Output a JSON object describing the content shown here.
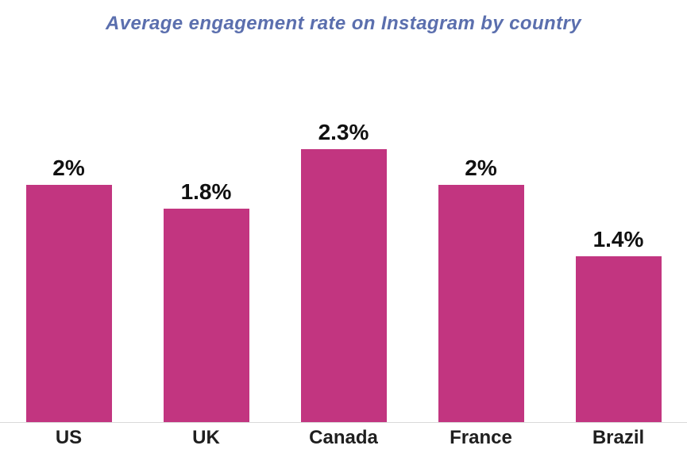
{
  "title": "Average engagement rate on Instagram by country",
  "colors": {
    "bar": "#c23580",
    "title": "#5b6fae",
    "axis_line": "#d9d9d9",
    "value_label": "#111111",
    "tick_label": "#1f1f1f",
    "background": "#ffffff"
  },
  "chart_data": {
    "type": "bar",
    "title": "Average engagement rate on Instagram by country",
    "categories": [
      "US",
      "UK",
      "Canada",
      "France",
      "Brazil"
    ],
    "values": [
      2,
      1.8,
      2.3,
      2,
      1.4
    ],
    "value_labels": [
      "2%",
      "1.8%",
      "2.3%",
      "2%",
      "1.4%"
    ],
    "xlabel": "",
    "ylabel": "",
    "ylim": [
      0,
      2.5
    ],
    "grid": false,
    "legend": false,
    "unit": "%"
  }
}
